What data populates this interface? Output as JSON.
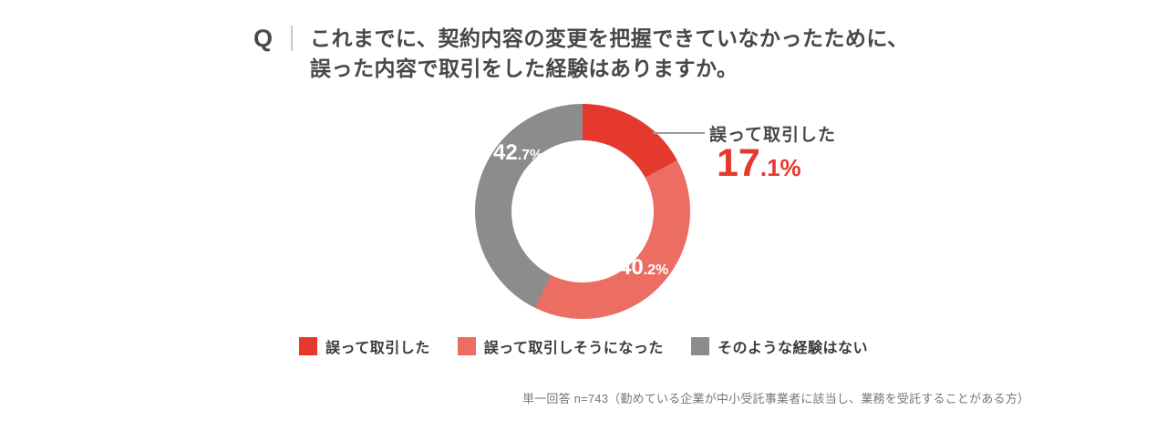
{
  "question": {
    "prefix": "Q",
    "line1": "これまでに、契約内容の変更を把握できていなかったために、",
    "line2": "誤った内容で取引をした経験はありますか。"
  },
  "chart_data": {
    "type": "pie",
    "donut": true,
    "start_angle_deg": 0,
    "direction": "clockwise",
    "title": "これまでに、契約内容の変更を把握できていなかったために、誤った内容で取引をした経験はありますか。",
    "categories": [
      "誤って取引した",
      "誤って取引しそうになった",
      "そのような経験はない"
    ],
    "values": [
      17.1,
      40.2,
      42.7
    ],
    "unit": "%",
    "colors": [
      "#e5392e",
      "#ec6d62",
      "#8c8c8c"
    ],
    "legend_position": "bottom",
    "inside_labels": [
      {
        "segment": "そのような経験はない",
        "big": "42",
        "small": ".7%"
      },
      {
        "segment": "誤って取引しそうになった",
        "big": "40",
        "small": ".2%"
      }
    ]
  },
  "callout": {
    "label": "誤って取引した",
    "value_big": "17",
    "value_small": ".1%",
    "color": "#e5392e"
  },
  "legend": {
    "items": [
      {
        "label": "誤って取引した",
        "color": "#e5392e"
      },
      {
        "label": "誤って取引しそうになった",
        "color": "#ec6d62"
      },
      {
        "label": "そのような経験はない",
        "color": "#8c8c8c"
      }
    ]
  },
  "footnote": "単一回答 n=743（勤めている企業が中小受託事業者に該当し、業務を受託することがある方）"
}
